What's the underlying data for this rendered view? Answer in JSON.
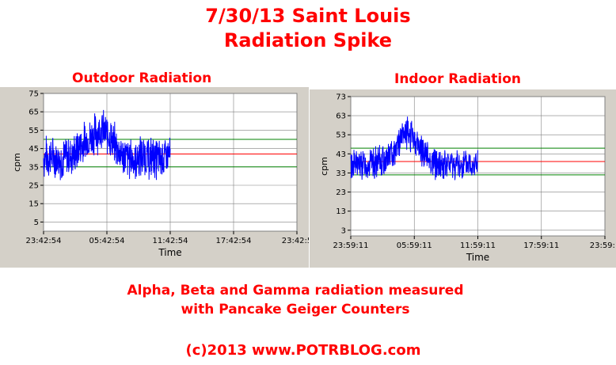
{
  "header": {
    "line1": "7/30/13    Saint Louis",
    "line2": "Radiation Spike"
  },
  "footer": {
    "line1": "Alpha, Beta and Gamma radiation measured",
    "line2": "with Pancake Geiger Counters",
    "copyright": "(c)2013  www.POTRBLOG.com"
  },
  "colors": {
    "series": "#0000ff",
    "average_line": "#ff0000",
    "band_line": "#008000",
    "panel_bg": "#d4d0c8",
    "plot_bg": "#ffffff"
  },
  "chart_data": [
    {
      "type": "line",
      "title": "Outdoor Radiation",
      "xlabel": "Time",
      "ylabel": "cpm",
      "x_ticks": [
        "23:42:54",
        "05:42:54",
        "11:42:54",
        "17:42:54",
        "23:42:5"
      ],
      "y_ticks": [
        5,
        15,
        25,
        35,
        45,
        55,
        65,
        75
      ],
      "ylim": [
        0,
        75
      ],
      "xlim_hours": [
        0,
        24
      ],
      "grid": true,
      "reference_lines": {
        "average": 42,
        "upper": 50,
        "lower": 35
      },
      "series": [
        {
          "x_hours": [
            0,
            0.5,
            1,
            1.5,
            2,
            2.5,
            3,
            3.5,
            4,
            4.5,
            5,
            5.5,
            6,
            6.5,
            7,
            7.5,
            8,
            8.5,
            9,
            9.5,
            10,
            10.5,
            11,
            11.5,
            12
          ],
          "mean": [
            40,
            41,
            40,
            39,
            40,
            41,
            42,
            46,
            49,
            51,
            54,
            55,
            53,
            49,
            45,
            41,
            40,
            39,
            40,
            41,
            40,
            40,
            39,
            40,
            41
          ],
          "spread": 11
        }
      ]
    },
    {
      "type": "line",
      "title": "Indoor Radiation",
      "xlabel": "Time",
      "ylabel": "cpm",
      "x_ticks": [
        "23:59:11",
        "05:59:11",
        "11:59:11",
        "17:59:11",
        "23:59:1"
      ],
      "y_ticks": [
        3,
        13,
        23,
        33,
        43,
        53,
        63,
        73
      ],
      "ylim": [
        0,
        73
      ],
      "xlim_hours": [
        0,
        24
      ],
      "grid": true,
      "reference_lines": {
        "average": 39,
        "upper": 46,
        "lower": 32
      },
      "series": [
        {
          "x_hours": [
            0,
            0.5,
            1,
            1.5,
            2,
            2.5,
            3,
            3.5,
            4,
            4.5,
            5,
            5.5,
            6,
            6.5,
            7,
            7.5,
            8,
            8.5,
            9,
            9.5,
            10,
            10.5,
            11,
            11.5,
            12
          ],
          "mean": [
            37,
            38,
            37,
            37,
            38,
            38,
            39,
            41,
            44,
            49,
            53,
            54,
            50,
            46,
            43,
            40,
            38,
            37,
            37,
            38,
            37,
            37,
            37,
            38,
            38
          ],
          "spread": 8
        }
      ]
    }
  ]
}
